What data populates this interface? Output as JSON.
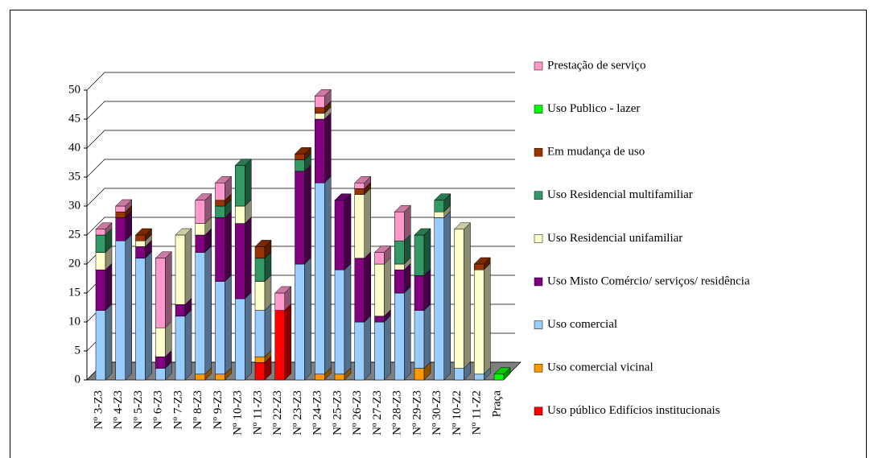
{
  "chart_data": {
    "type": "bar3d_stacked",
    "categories": [
      "Nº 3-Z3",
      "Nº 4-Z3",
      "Nº 5-Z3",
      "Nº 6-Z3",
      "Nº 7-Z3",
      "Nº 8-Z3",
      "Nº 9-Z3",
      "Nº 10-Z3",
      "Nº 11-Z3",
      "Nº 22-Z3",
      "Nº 23-Z3",
      "Nº 24-Z3",
      "Nº 25-Z3",
      "Nº 26-Z3",
      "Nº 27-Z3",
      "Nº 28-Z3",
      "Nº 29-Z3",
      "Nº 30-Z3",
      "Nº 10-Z2",
      "Nº 11-Z2",
      "Praça"
    ],
    "series": [
      {
        "name": "Uso público Edifícios institucionais",
        "color": "#ff0000",
        "values": [
          0,
          0,
          0,
          0,
          0,
          0,
          0,
          0,
          3,
          12,
          0,
          0,
          0,
          0,
          0,
          0,
          0,
          0,
          0,
          0,
          0
        ]
      },
      {
        "name": "Uso comercial vicinal",
        "color": "#ff9900",
        "values": [
          0,
          0,
          0,
          0,
          0,
          1,
          1,
          0,
          1,
          0,
          0,
          1,
          1,
          0,
          0,
          0,
          2,
          0,
          0,
          0,
          0
        ]
      },
      {
        "name": "Uso comercial",
        "color": "#99ccff",
        "values": [
          12,
          24,
          21,
          2,
          11,
          21,
          16,
          14,
          8,
          0,
          20,
          33,
          18,
          10,
          10,
          15,
          10,
          28,
          2,
          1,
          0
        ]
      },
      {
        "name": "Uso Misto Comércio/ serviços/ residência",
        "color": "#800080",
        "values": [
          7,
          4,
          2,
          2,
          2,
          3,
          11,
          13,
          0,
          0,
          16,
          11,
          12,
          11,
          1,
          4,
          6,
          0,
          0,
          0,
          0
        ]
      },
      {
        "name": "Uso Residencial unifamiliar",
        "color": "#ffffcc",
        "values": [
          3,
          0,
          1,
          5,
          12,
          2,
          0,
          3,
          5,
          0,
          0,
          1,
          0,
          11,
          9,
          1,
          0,
          1,
          24,
          18,
          0
        ]
      },
      {
        "name": "Uso Residencial multifamiliar",
        "color": "#339966",
        "values": [
          3,
          0,
          0,
          0,
          0,
          0,
          2,
          7,
          4,
          0,
          2,
          0,
          0,
          0,
          0,
          4,
          7,
          2,
          0,
          0,
          0
        ]
      },
      {
        "name": "Em mudança de uso",
        "color": "#993300",
        "values": [
          0,
          1,
          1,
          0,
          0,
          0,
          1,
          0,
          2,
          0,
          1,
          1,
          0,
          1,
          0,
          0,
          0,
          0,
          0,
          1,
          0
        ]
      },
      {
        "name": "Uso Publico - lazer",
        "color": "#00ff00",
        "values": [
          0,
          0,
          0,
          0,
          0,
          0,
          0,
          0,
          0,
          0,
          0,
          0,
          0,
          0,
          0,
          0,
          0,
          0,
          0,
          0,
          1
        ]
      },
      {
        "name": "Prestação de serviço",
        "color": "#ff99cc",
        "values": [
          1,
          1,
          0,
          12,
          0,
          4,
          3,
          0,
          0,
          3,
          0,
          2,
          0,
          1,
          2,
          5,
          0,
          0,
          0,
          0,
          0
        ]
      }
    ],
    "ylim": [
      0,
      50
    ],
    "yticks": [
      0,
      5,
      10,
      15,
      20,
      25,
      30,
      35,
      40,
      45,
      50
    ],
    "grid": true,
    "legend": "right"
  }
}
